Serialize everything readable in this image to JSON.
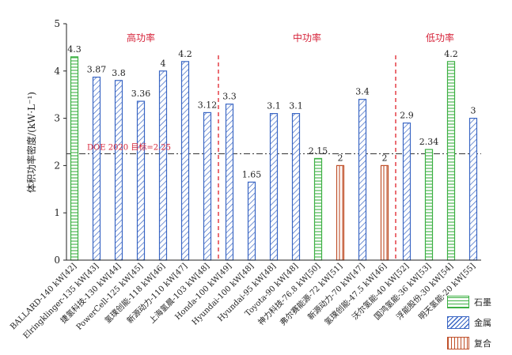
{
  "chart_data": {
    "type": "bar",
    "ylabel": "体积功率密度/(kW·L⁻¹)",
    "ylim": [
      0,
      5
    ],
    "yticks": [
      0,
      1,
      2,
      3,
      4,
      5
    ],
    "categories": [
      "BALLARD-140 kW[42]",
      "Elringklinger-135 kW[43]",
      "捷氢科技-130 kW[44]",
      "PowerCell-125 kW[45]",
      "氢璞创能-118 kW[46]",
      "新源动力-110 kW[47]",
      "上海氢晨-103 kW[48]",
      "Honda-100 kW[49]",
      "Hyundai-100 kW[48]",
      "Hyundai-95 kW[48]",
      "Toyota-90 kW[48]",
      "神力科技-76.8 kW[50]",
      "弗尔赛能源-72 kW[51]",
      "新源动力-70 kW[47]",
      "氢璞创能-47.5 kW[46]",
      "沃尔氢能-40 kW[52]",
      "国鸿氢能-36 kW[53]",
      "浮能股份-30 kW[54]",
      "明天氢能-20 kW[55]"
    ],
    "values": [
      4.3,
      3.87,
      3.8,
      3.36,
      4,
      4.2,
      3.12,
      3.3,
      1.65,
      3.1,
      3.1,
      2.15,
      2,
      3.4,
      2,
      2.9,
      2.34,
      4.2,
      3
    ],
    "value_labels": [
      "4.3",
      "3.87",
      "3.8",
      "3.36",
      "4",
      "4.2",
      "3.12",
      "3.3",
      "1.65",
      "3.1",
      "3.1",
      "2.15",
      "2",
      "3.4",
      "2",
      "2.9",
      "2.34",
      "4.2",
      "3"
    ],
    "bar_types": [
      "graphite",
      "metal",
      "metal",
      "metal",
      "metal",
      "metal",
      "metal",
      "metal",
      "metal",
      "metal",
      "metal",
      "graphite",
      "composite",
      "metal",
      "composite",
      "metal",
      "graphite",
      "graphite",
      "metal"
    ],
    "sections": [
      {
        "label": "高功率",
        "first": 0,
        "last": 6
      },
      {
        "label": "中功率",
        "first": 7,
        "last": 14
      },
      {
        "label": "低功率",
        "first": 15,
        "last": 18
      }
    ],
    "divider_after": [
      6,
      14
    ],
    "reference_line": {
      "value": 2.25,
      "label": "DOE 2020 目标=2.25"
    },
    "colors": {
      "graphite": "#3cb043",
      "metal": "#3a66c4",
      "composite": "#c0502a",
      "divider": "#e0202a",
      "section_text": "#d6243a",
      "reference": "#333333"
    },
    "legend": [
      {
        "type": "graphite",
        "label": "石墨"
      },
      {
        "type": "metal",
        "label": "金属"
      },
      {
        "type": "composite",
        "label": "复合"
      }
    ]
  }
}
